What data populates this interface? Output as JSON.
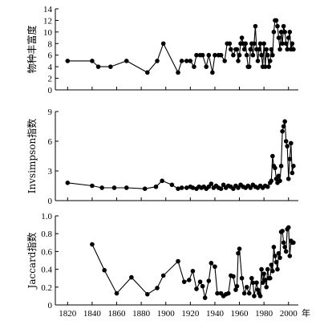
{
  "chart_data": [
    {
      "type": "line",
      "ylabel": "物种丰富度",
      "ylim": [
        0,
        14
      ],
      "yticks": [
        0,
        2,
        4,
        6,
        8,
        10,
        12,
        14
      ],
      "xlim": [
        1810,
        2008
      ],
      "points": [
        [
          1820,
          5
        ],
        [
          1840,
          5
        ],
        [
          1845,
          4
        ],
        [
          1855,
          4
        ],
        [
          1868,
          5
        ],
        [
          1885,
          3
        ],
        [
          1893,
          5
        ],
        [
          1898,
          8
        ],
        [
          1910,
          3
        ],
        [
          1913,
          5
        ],
        [
          1917,
          5
        ],
        [
          1920,
          5
        ],
        [
          1923,
          4
        ],
        [
          1925,
          6
        ],
        [
          1928,
          6
        ],
        [
          1930,
          6
        ],
        [
          1933,
          4
        ],
        [
          1935,
          6
        ],
        [
          1938,
          3
        ],
        [
          1940,
          6
        ],
        [
          1943,
          6
        ],
        [
          1945,
          6
        ],
        [
          1948,
          5
        ],
        [
          1950,
          8
        ],
        [
          1952,
          8
        ],
        [
          1953,
          7
        ],
        [
          1955,
          6
        ],
        [
          1957,
          7
        ],
        [
          1958,
          7
        ],
        [
          1959,
          5
        ],
        [
          1960,
          6
        ],
        [
          1961,
          8
        ],
        [
          1962,
          9
        ],
        [
          1963,
          8
        ],
        [
          1964,
          7
        ],
        [
          1965,
          8
        ],
        [
          1966,
          6
        ],
        [
          1967,
          4
        ],
        [
          1968,
          4
        ],
        [
          1969,
          7
        ],
        [
          1970,
          8
        ],
        [
          1971,
          6
        ],
        [
          1972,
          8
        ],
        [
          1973,
          11
        ],
        [
          1974,
          7
        ],
        [
          1975,
          5
        ],
        [
          1976,
          7
        ],
        [
          1977,
          8
        ],
        [
          1978,
          6
        ],
        [
          1979,
          4
        ],
        [
          1980,
          8
        ],
        [
          1981,
          4
        ],
        [
          1982,
          7
        ],
        [
          1983,
          6
        ],
        [
          1984,
          4
        ],
        [
          1985,
          5
        ],
        [
          1986,
          7
        ],
        [
          1987,
          6
        ],
        [
          1988,
          10
        ],
        [
          1989,
          12
        ],
        [
          1990,
          12
        ],
        [
          1991,
          11
        ],
        [
          1992,
          9
        ],
        [
          1993,
          7
        ],
        [
          1994,
          10
        ],
        [
          1995,
          8
        ],
        [
          1996,
          11
        ],
        [
          1997,
          10
        ],
        [
          1998,
          8
        ],
        [
          1999,
          7
        ],
        [
          2000,
          9
        ],
        [
          2001,
          10
        ],
        [
          2002,
          7
        ],
        [
          2003,
          8
        ],
        [
          2004,
          7
        ]
      ]
    },
    {
      "type": "line",
      "ylabel": "Invsimpson指数",
      "ylim": [
        0,
        9
      ],
      "yticks": [
        0,
        3,
        6,
        9
      ],
      "xlim": [
        1810,
        2008
      ],
      "points": [
        [
          1820,
          1.8
        ],
        [
          1840,
          1.5
        ],
        [
          1848,
          1.3
        ],
        [
          1858,
          1.3
        ],
        [
          1868,
          1.3
        ],
        [
          1883,
          1.2
        ],
        [
          1892,
          1.4
        ],
        [
          1897,
          2.0
        ],
        [
          1905,
          1.6
        ],
        [
          1910,
          1.2
        ],
        [
          1913,
          1.3
        ],
        [
          1917,
          1.3
        ],
        [
          1920,
          1.4
        ],
        [
          1922,
          1.3
        ],
        [
          1925,
          1.2
        ],
        [
          1927,
          1.4
        ],
        [
          1929,
          1.3
        ],
        [
          1931,
          1.4
        ],
        [
          1933,
          1.2
        ],
        [
          1935,
          1.4
        ],
        [
          1937,
          1.7
        ],
        [
          1939,
          1.3
        ],
        [
          1941,
          1.5
        ],
        [
          1943,
          1.3
        ],
        [
          1945,
          1.2
        ],
        [
          1947,
          1.6
        ],
        [
          1949,
          1.3
        ],
        [
          1951,
          1.5
        ],
        [
          1953,
          1.4
        ],
        [
          1955,
          1.2
        ],
        [
          1957,
          1.5
        ],
        [
          1959,
          1.3
        ],
        [
          1961,
          1.6
        ],
        [
          1963,
          1.4
        ],
        [
          1965,
          1.3
        ],
        [
          1967,
          1.5
        ],
        [
          1969,
          1.3
        ],
        [
          1971,
          1.6
        ],
        [
          1973,
          1.4
        ],
        [
          1975,
          1.3
        ],
        [
          1977,
          1.5
        ],
        [
          1979,
          1.3
        ],
        [
          1981,
          1.5
        ],
        [
          1983,
          1.4
        ],
        [
          1985,
          1.8
        ],
        [
          1986,
          2.0
        ],
        [
          1987,
          4.5
        ],
        [
          1988,
          3.5
        ],
        [
          1989,
          3.3
        ],
        [
          1990,
          2.2
        ],
        [
          1991,
          1.8
        ],
        [
          1992,
          2.5
        ],
        [
          1993,
          2.0
        ],
        [
          1994,
          3.5
        ],
        [
          1995,
          7.0
        ],
        [
          1996,
          7.5
        ],
        [
          1997,
          8.0
        ],
        [
          1998,
          6.0
        ],
        [
          1999,
          5.5
        ],
        [
          2000,
          2.2
        ],
        [
          2001,
          4.2
        ],
        [
          2002,
          5.8
        ],
        [
          2003,
          2.8
        ],
        [
          2004,
          3.5
        ]
      ]
    },
    {
      "type": "line",
      "ylabel": "Jaccard指数",
      "ylim": [
        0,
        1.0
      ],
      "yticks": [
        "0",
        "0.2",
        "0.4",
        "0.6",
        "0.8",
        "1.0"
      ],
      "xlim": [
        1810,
        2008
      ],
      "xticks": [
        1820,
        1840,
        1860,
        1880,
        1900,
        1920,
        1940,
        1960,
        1980,
        2000
      ],
      "xunit": "年",
      "points": [
        [
          1840,
          0.68
        ],
        [
          1850,
          0.39
        ],
        [
          1860,
          0.13
        ],
        [
          1872,
          0.31
        ],
        [
          1885,
          0.12
        ],
        [
          1893,
          0.19
        ],
        [
          1898,
          0.33
        ],
        [
          1910,
          0.49
        ],
        [
          1915,
          0.26
        ],
        [
          1919,
          0.28
        ],
        [
          1922,
          0.38
        ],
        [
          1925,
          0.18
        ],
        [
          1928,
          0.26
        ],
        [
          1930,
          0.21
        ],
        [
          1932,
          0.08
        ],
        [
          1935,
          0.27
        ],
        [
          1937,
          0.47
        ],
        [
          1940,
          0.43
        ],
        [
          1942,
          0.13
        ],
        [
          1945,
          0.13
        ],
        [
          1947,
          0.1
        ],
        [
          1949,
          0.12
        ],
        [
          1951,
          0.13
        ],
        [
          1953,
          0.33
        ],
        [
          1955,
          0.32
        ],
        [
          1957,
          0.17
        ],
        [
          1958,
          0.21
        ],
        [
          1959,
          0.58
        ],
        [
          1960,
          0.63
        ],
        [
          1962,
          0.3
        ],
        [
          1964,
          0.13
        ],
        [
          1966,
          0.2
        ],
        [
          1968,
          0.13
        ],
        [
          1970,
          0.3
        ],
        [
          1971,
          0.25
        ],
        [
          1972,
          0.1
        ],
        [
          1974,
          0.25
        ],
        [
          1975,
          0.17
        ],
        [
          1976,
          0.13
        ],
        [
          1977,
          0.1
        ],
        [
          1978,
          0.4
        ],
        [
          1979,
          0.25
        ],
        [
          1980,
          0.35
        ],
        [
          1981,
          0.28
        ],
        [
          1982,
          0.2
        ],
        [
          1983,
          0.4
        ],
        [
          1984,
          0.3
        ],
        [
          1985,
          0.3
        ],
        [
          1986,
          0.45
        ],
        [
          1987,
          0.38
        ],
        [
          1988,
          0.65
        ],
        [
          1989,
          0.55
        ],
        [
          1990,
          0.48
        ],
        [
          1991,
          0.4
        ],
        [
          1992,
          0.58
        ],
        [
          1993,
          0.53
        ],
        [
          1994,
          0.82
        ],
        [
          1995,
          0.83
        ],
        [
          1996,
          0.7
        ],
        [
          1997,
          0.65
        ],
        [
          1998,
          0.6
        ],
        [
          1999,
          0.85
        ],
        [
          2000,
          0.87
        ],
        [
          2001,
          0.55
        ],
        [
          2002,
          0.72
        ],
        [
          2003,
          0.7
        ],
        [
          2004,
          0.7
        ]
      ]
    }
  ]
}
